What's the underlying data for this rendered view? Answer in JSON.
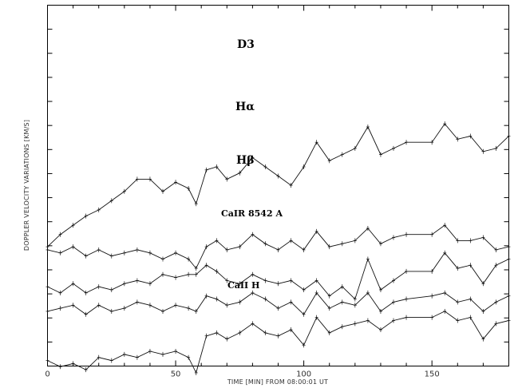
{
  "chart_data": {
    "type": "line",
    "xlabel": "TIME [MIN] FROM 08:00:01 UT",
    "ylabel": "DOPPLER VELOCITY VARIATIONS [KM/S]",
    "xlim": [
      0,
      180
    ],
    "x_ticks": [
      "0",
      "50",
      "100",
      "150"
    ],
    "y_tick_count": 14,
    "grid": false,
    "legend": "none",
    "note": "Stacked traces, vertically offset; y-axis has ticks but no printed values. Values are relative vertical offsets read from the figure.",
    "series": [
      {
        "name": "D3",
        "x": [
          0,
          5,
          10,
          15,
          20,
          25,
          30,
          35,
          40,
          45,
          50,
          55,
          58,
          62,
          66,
          70,
          75,
          80,
          85,
          90,
          95,
          100,
          105,
          110,
          115,
          120,
          125,
          130,
          135,
          140,
          150,
          155,
          160,
          165,
          170,
          175,
          180
        ],
        "values": [
          3.4,
          3.8,
          4.1,
          4.4,
          4.6,
          4.9,
          5.2,
          5.6,
          5.6,
          5.2,
          5.5,
          5.3,
          4.8,
          5.9,
          6.0,
          5.6,
          5.8,
          6.3,
          6.0,
          5.7,
          5.4,
          6.0,
          6.8,
          6.2,
          6.4,
          6.6,
          7.3,
          6.4,
          6.6,
          6.8,
          6.8,
          7.4,
          6.9,
          7.0,
          6.5,
          6.6,
          7.0
        ]
      },
      {
        "name": "Hα",
        "x": [
          0,
          5,
          10,
          15,
          20,
          25,
          30,
          35,
          40,
          45,
          50,
          55,
          58,
          62,
          66,
          70,
          75,
          80,
          85,
          90,
          95,
          100,
          105,
          110,
          115,
          120,
          125,
          130,
          135,
          140,
          150,
          155,
          160,
          165,
          170,
          175,
          180
        ],
        "values": [
          3.3,
          3.2,
          3.4,
          3.1,
          3.3,
          3.1,
          3.2,
          3.3,
          3.2,
          3.0,
          3.2,
          3.0,
          2.7,
          3.4,
          3.6,
          3.3,
          3.4,
          3.8,
          3.5,
          3.3,
          3.6,
          3.3,
          3.9,
          3.4,
          3.5,
          3.6,
          4.0,
          3.5,
          3.7,
          3.8,
          3.8,
          4.1,
          3.6,
          3.6,
          3.7,
          3.3,
          3.4
        ]
      },
      {
        "name": "Hβ",
        "x": [
          0,
          5,
          10,
          15,
          20,
          25,
          30,
          35,
          40,
          45,
          50,
          55,
          58,
          62,
          66,
          70,
          75,
          80,
          85,
          90,
          95,
          100,
          105,
          110,
          115,
          120,
          125,
          130,
          135,
          140,
          150,
          155,
          160,
          165,
          170,
          175,
          180
        ],
        "values": [
          2.1,
          1.9,
          2.2,
          1.9,
          2.1,
          2.0,
          2.2,
          2.3,
          2.2,
          2.5,
          2.4,
          2.5,
          2.5,
          2.8,
          2.6,
          2.3,
          2.2,
          2.5,
          2.3,
          2.2,
          2.3,
          2.0,
          2.3,
          1.8,
          2.1,
          1.7,
          3.0,
          2.0,
          2.3,
          2.6,
          2.6,
          3.2,
          2.7,
          2.8,
          2.2,
          2.8,
          3.0
        ]
      },
      {
        "name": "CaIR 8542 A",
        "x": [
          0,
          5,
          10,
          15,
          20,
          25,
          30,
          35,
          40,
          45,
          50,
          55,
          58,
          62,
          66,
          70,
          75,
          80,
          85,
          90,
          95,
          100,
          105,
          110,
          115,
          120,
          125,
          130,
          135,
          140,
          150,
          155,
          160,
          165,
          170,
          175,
          180
        ],
        "values": [
          1.3,
          1.4,
          1.5,
          1.2,
          1.5,
          1.3,
          1.4,
          1.6,
          1.5,
          1.3,
          1.5,
          1.4,
          1.3,
          1.8,
          1.7,
          1.5,
          1.6,
          1.9,
          1.7,
          1.4,
          1.6,
          1.2,
          1.9,
          1.4,
          1.6,
          1.5,
          1.9,
          1.3,
          1.6,
          1.7,
          1.8,
          1.9,
          1.6,
          1.7,
          1.3,
          1.6,
          1.8
        ]
      },
      {
        "name": "CaII H",
        "x": [
          0,
          5,
          10,
          15,
          20,
          25,
          30,
          35,
          40,
          45,
          50,
          55,
          58,
          62,
          66,
          70,
          75,
          80,
          85,
          90,
          95,
          100,
          105,
          110,
          115,
          120,
          125,
          130,
          135,
          140,
          150,
          155,
          160,
          165,
          170,
          175,
          180
        ],
        "values": [
          -0.3,
          -0.5,
          -0.4,
          -0.6,
          -0.2,
          -0.3,
          -0.1,
          -0.2,
          0.0,
          -0.1,
          0.0,
          -0.2,
          -0.7,
          0.5,
          0.6,
          0.4,
          0.6,
          0.9,
          0.6,
          0.5,
          0.7,
          0.2,
          1.1,
          0.6,
          0.8,
          0.9,
          1.0,
          0.7,
          1.0,
          1.1,
          1.1,
          1.3,
          1.0,
          1.1,
          0.4,
          0.9,
          1.0
        ]
      }
    ]
  },
  "series_labels": [
    "D3",
    "Hα",
    "Hβ",
    "CaIR 8542 A",
    "CaII H"
  ],
  "colors": {
    "line": "#111111",
    "axis": "#000000",
    "background": "#ffffff"
  }
}
